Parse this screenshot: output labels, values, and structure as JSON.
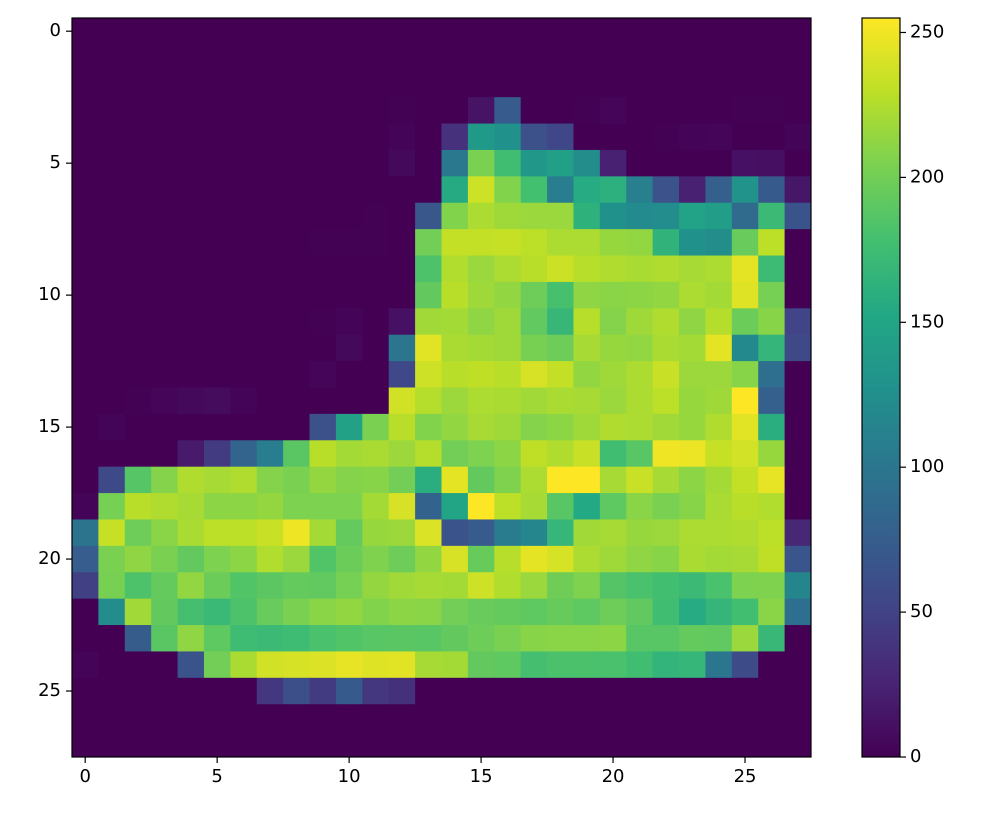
{
  "chart_data": {
    "type": "heatmap",
    "colormap": "viridis",
    "xlim": [
      -0.5,
      27.5
    ],
    "ylim": [
      27.5,
      -0.5
    ],
    "xticks": [
      0,
      5,
      10,
      15,
      20,
      25
    ],
    "yticks": [
      0,
      5,
      10,
      15,
      20,
      25
    ],
    "clim": [
      0,
      255
    ],
    "cticks": [
      0,
      50,
      100,
      150,
      200,
      250
    ],
    "colorbar": true,
    "z": [
      [
        0,
        0,
        0,
        0,
        0,
        0,
        0,
        0,
        0,
        0,
        0,
        0,
        0,
        0,
        0,
        0,
        0,
        0,
        0,
        0,
        0,
        0,
        0,
        0,
        0,
        0,
        0,
        0
      ],
      [
        0,
        0,
        0,
        0,
        0,
        0,
        0,
        0,
        0,
        0,
        0,
        0,
        0,
        0,
        0,
        0,
        0,
        0,
        0,
        0,
        0,
        0,
        0,
        0,
        0,
        0,
        0,
        0
      ],
      [
        0,
        0,
        0,
        0,
        0,
        0,
        0,
        0,
        0,
        0,
        0,
        0,
        0,
        0,
        0,
        0,
        0,
        0,
        0,
        0,
        0,
        0,
        0,
        0,
        0,
        0,
        0,
        0
      ],
      [
        0,
        0,
        0,
        0,
        0,
        0,
        0,
        0,
        0,
        0,
        0,
        0,
        1,
        0,
        0,
        13,
        73,
        0,
        0,
        1,
        4,
        0,
        0,
        0,
        0,
        1,
        1,
        0
      ],
      [
        0,
        0,
        0,
        0,
        0,
        0,
        0,
        0,
        0,
        0,
        0,
        0,
        3,
        0,
        36,
        136,
        127,
        62,
        54,
        0,
        0,
        0,
        1,
        3,
        4,
        0,
        0,
        3
      ],
      [
        0,
        0,
        0,
        0,
        0,
        0,
        0,
        0,
        0,
        0,
        0,
        0,
        6,
        0,
        102,
        204,
        176,
        134,
        144,
        123,
        23,
        0,
        0,
        0,
        0,
        12,
        10,
        0
      ],
      [
        0,
        0,
        0,
        0,
        0,
        0,
        0,
        0,
        0,
        0,
        0,
        0,
        0,
        0,
        155,
        236,
        207,
        178,
        107,
        156,
        161,
        109,
        64,
        23,
        77,
        130,
        72,
        15
      ],
      [
        0,
        0,
        0,
        0,
        0,
        0,
        0,
        0,
        0,
        0,
        0,
        1,
        0,
        69,
        207,
        223,
        218,
        216,
        216,
        163,
        127,
        121,
        122,
        146,
        141,
        88,
        172,
        66
      ],
      [
        0,
        0,
        0,
        0,
        0,
        0,
        0,
        0,
        0,
        1,
        1,
        1,
        0,
        200,
        232,
        232,
        233,
        229,
        223,
        223,
        215,
        213,
        164,
        127,
        123,
        196,
        229,
        0
      ],
      [
        0,
        0,
        0,
        0,
        0,
        0,
        0,
        0,
        0,
        0,
        0,
        0,
        0,
        183,
        225,
        216,
        223,
        228,
        235,
        227,
        224,
        222,
        224,
        221,
        223,
        245,
        173,
        0
      ],
      [
        0,
        0,
        0,
        0,
        0,
        0,
        0,
        0,
        0,
        0,
        0,
        0,
        0,
        193,
        228,
        218,
        213,
        198,
        180,
        212,
        210,
        211,
        213,
        223,
        220,
        243,
        202,
        0
      ],
      [
        0,
        0,
        0,
        0,
        0,
        0,
        0,
        0,
        0,
        1,
        3,
        0,
        12,
        219,
        220,
        212,
        218,
        192,
        169,
        227,
        208,
        218,
        224,
        212,
        226,
        197,
        209,
        52
      ],
      [
        0,
        0,
        0,
        0,
        0,
        0,
        0,
        0,
        0,
        0,
        6,
        0,
        99,
        244,
        222,
        220,
        218,
        203,
        198,
        221,
        215,
        213,
        222,
        220,
        245,
        119,
        167,
        56
      ],
      [
        0,
        0,
        0,
        0,
        0,
        0,
        0,
        0,
        0,
        4,
        0,
        0,
        55,
        236,
        228,
        230,
        228,
        240,
        232,
        213,
        218,
        223,
        234,
        217,
        217,
        209,
        92,
        0
      ],
      [
        0,
        0,
        1,
        4,
        6,
        7,
        2,
        0,
        0,
        0,
        0,
        0,
        237,
        226,
        217,
        223,
        222,
        219,
        222,
        221,
        216,
        223,
        229,
        215,
        218,
        255,
        77,
        0
      ],
      [
        0,
        3,
        0,
        0,
        0,
        0,
        0,
        0,
        0,
        62,
        145,
        204,
        228,
        207,
        213,
        221,
        218,
        208,
        211,
        218,
        224,
        223,
        219,
        215,
        224,
        244,
        159,
        0
      ],
      [
        0,
        0,
        0,
        0,
        18,
        44,
        82,
        107,
        189,
        228,
        220,
        222,
        217,
        226,
        200,
        205,
        211,
        230,
        224,
        234,
        176,
        188,
        250,
        248,
        233,
        238,
        215,
        0
      ],
      [
        0,
        57,
        187,
        208,
        224,
        221,
        224,
        208,
        204,
        214,
        208,
        209,
        200,
        159,
        245,
        193,
        206,
        223,
        255,
        255,
        221,
        234,
        221,
        211,
        220,
        232,
        246,
        0
      ],
      [
        3,
        202,
        228,
        224,
        221,
        211,
        211,
        214,
        205,
        205,
        205,
        220,
        240,
        80,
        150,
        255,
        229,
        221,
        188,
        154,
        191,
        210,
        204,
        209,
        222,
        228,
        225,
        0
      ],
      [
        98,
        233,
        198,
        210,
        222,
        229,
        229,
        234,
        249,
        220,
        194,
        215,
        217,
        241,
        65,
        73,
        106,
        117,
        168,
        219,
        221,
        215,
        217,
        223,
        223,
        224,
        229,
        29
      ],
      [
        75,
        204,
        212,
        204,
        193,
        205,
        211,
        225,
        216,
        185,
        197,
        206,
        198,
        213,
        240,
        195,
        227,
        245,
        239,
        223,
        218,
        212,
        209,
        222,
        220,
        221,
        230,
        67
      ],
      [
        48,
        203,
        183,
        194,
        213,
        197,
        185,
        190,
        194,
        192,
        202,
        214,
        219,
        221,
        220,
        236,
        225,
        216,
        199,
        206,
        186,
        181,
        177,
        172,
        181,
        205,
        206,
        115
      ],
      [
        0,
        122,
        219,
        193,
        179,
        171,
        183,
        196,
        204,
        210,
        213,
        207,
        211,
        210,
        200,
        196,
        194,
        191,
        195,
        191,
        198,
        192,
        176,
        156,
        167,
        177,
        210,
        92
      ],
      [
        0,
        0,
        74,
        189,
        212,
        191,
        175,
        172,
        175,
        181,
        185,
        188,
        189,
        188,
        193,
        198,
        204,
        209,
        210,
        210,
        211,
        188,
        188,
        194,
        192,
        216,
        170,
        0
      ],
      [
        2,
        0,
        0,
        0,
        66,
        200,
        222,
        237,
        239,
        242,
        246,
        243,
        244,
        221,
        220,
        193,
        191,
        179,
        182,
        182,
        181,
        176,
        166,
        168,
        99,
        58,
        0,
        0
      ],
      [
        0,
        0,
        0,
        0,
        0,
        0,
        0,
        40,
        61,
        44,
        72,
        41,
        35,
        0,
        0,
        0,
        0,
        0,
        0,
        0,
        0,
        0,
        0,
        0,
        0,
        0,
        0,
        0
      ],
      [
        0,
        0,
        0,
        0,
        0,
        0,
        0,
        0,
        0,
        0,
        0,
        0,
        0,
        0,
        0,
        0,
        0,
        0,
        0,
        0,
        0,
        0,
        0,
        0,
        0,
        0,
        0,
        0
      ],
      [
        0,
        0,
        0,
        0,
        0,
        0,
        0,
        0,
        0,
        0,
        0,
        0,
        0,
        0,
        0,
        0,
        0,
        0,
        0,
        0,
        0,
        0,
        0,
        0,
        0,
        0,
        0,
        0
      ]
    ]
  }
}
